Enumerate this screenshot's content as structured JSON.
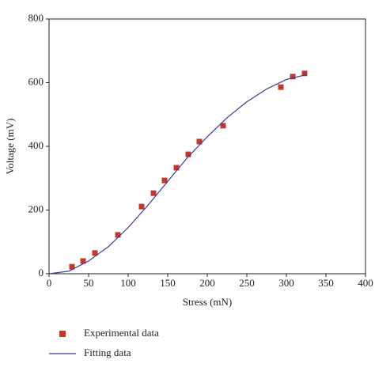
{
  "chart_data": {
    "type": "scatter",
    "xlabel": "Stress (mN)",
    "ylabel": "Voltage (mV)",
    "xlim": [
      0,
      400
    ],
    "xticks": [
      0,
      50,
      100,
      150,
      200,
      250,
      300,
      350,
      400
    ],
    "ylim": [
      0,
      800
    ],
    "yticks": [
      0,
      200,
      400,
      600,
      800
    ],
    "series": [
      {
        "name": "Experimental data",
        "type": "scatter",
        "color": "#c0392b",
        "x": [
          29,
          43,
          58,
          87,
          117,
          132,
          146,
          161,
          176,
          190,
          220,
          293,
          308,
          323
        ],
        "values": [
          22,
          40,
          65,
          122,
          211,
          253,
          293,
          333,
          375,
          415,
          465,
          586,
          619,
          629
        ]
      },
      {
        "name": "Fitting data",
        "type": "line",
        "color": "#3b3b9c",
        "x": [
          0,
          25,
          50,
          75,
          100,
          125,
          150,
          175,
          200,
          225,
          250,
          275,
          300,
          325
        ],
        "values": [
          0,
          8,
          40,
          85,
          145,
          215,
          290,
          365,
          430,
          490,
          540,
          580,
          610,
          625
        ]
      }
    ]
  }
}
